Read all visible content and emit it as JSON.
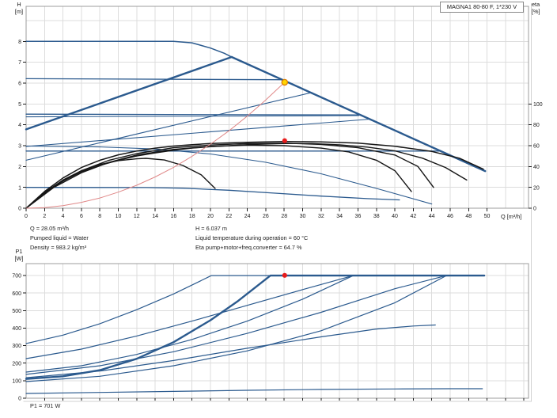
{
  "title_box": "MAGNA1 80-80 F, 1*230 V",
  "axes": {
    "top": {
      "y_label_1": "H",
      "y_label_2": "[m]",
      "y_ticks": [
        0,
        1,
        2,
        3,
        4,
        5,
        6,
        7,
        8
      ],
      "x_ticks": [
        0,
        2,
        4,
        6,
        8,
        10,
        12,
        14,
        16,
        18,
        20,
        22,
        24,
        26,
        28,
        30,
        32,
        34,
        36,
        38,
        40,
        42,
        44,
        46,
        48,
        50
      ],
      "x_axis_label": "Q [m³/h]",
      "eta_label_1": "eta",
      "eta_label_2": "[%]",
      "eta_ticks": [
        0,
        20,
        40,
        60,
        80,
        100
      ]
    },
    "bottom": {
      "y_label_1": "P1",
      "y_label_2": "[W]",
      "y_ticks": [
        0,
        100,
        200,
        300,
        400,
        500,
        600,
        700
      ]
    }
  },
  "annotations": {
    "left": [
      "Q = 28.05 m³/h",
      "Pumped liquid = Water",
      "Density = 983.2 kg/m³"
    ],
    "right": [
      "H = 6.037 m",
      "Liquid temperature during operation = 60 °C",
      "Eta pump+motor+freq.converter = 64.7 %"
    ],
    "power_readout": "P1 = 701 W"
  },
  "colors": {
    "curve_blue": "#2b5a8e",
    "curve_black": "#161616",
    "system_red": "#e08888",
    "dot_red": "#e81c1c",
    "dot_yellow": "#ffd400",
    "dot_yellow_ring": "#dd7f00",
    "grid": "#dcdcdc",
    "border": "#9d9d9d",
    "outer": "#d2d2d2",
    "text": "#1a1a1a"
  },
  "duty_point": {
    "flow_m3h": 28.05,
    "head_m": 6.037,
    "eta_pct": 64.7,
    "power_w": 701
  },
  "chart_data": [
    {
      "id": "head-flow",
      "type": "line",
      "title": "MAGNA1 80-80 F, 1*230 V",
      "xlabel": "Q [m³/h]",
      "ylabel": "H [m]",
      "y2label": "eta [%]",
      "xlim": [
        0,
        54.5
      ],
      "ylim": [
        0,
        9.68
      ],
      "y2lim_pct": [
        0,
        193.6
      ],
      "grid": "on",
      "series": [
        {
          "name": "max-curve-flat",
          "color": "curve_blue",
          "w": 1.5,
          "axis": "h",
          "pts": [
            [
              0,
              8
            ],
            [
              16,
              8
            ],
            [
              18,
              7.93
            ],
            [
              20,
              7.68
            ],
            [
              21.5,
              7.43
            ],
            [
              22.3,
              7.25
            ]
          ]
        },
        {
          "name": "max-curve-descent",
          "color": "curve_blue",
          "w": 2.4,
          "axis": "h",
          "pts": [
            [
              22.3,
              7.25
            ],
            [
              49.8,
              1.78
            ]
          ]
        },
        {
          "name": "max-curve-rise",
          "color": "curve_blue",
          "w": 2.4,
          "axis": "h",
          "pts": [
            [
              0,
              3.78
            ],
            [
              22.3,
              7.25
            ]
          ]
        },
        {
          "name": "const-pressure-6.2",
          "color": "curve_blue",
          "w": 1.3,
          "axis": "h",
          "pts": [
            [
              0,
              6.21
            ],
            [
              27.6,
              6.16
            ]
          ]
        },
        {
          "name": "const-pressure-4.5",
          "color": "curve_blue",
          "w": 1.3,
          "axis": "h",
          "pts": [
            [
              0,
              4.51
            ],
            [
              36.1,
              4.47
            ]
          ]
        },
        {
          "name": "prop-pressure-4.4",
          "color": "curve_blue",
          "w": 1.1,
          "axis": "h",
          "pts": [
            [
              0,
              4.38
            ],
            [
              36.1,
              4.44
            ]
          ]
        },
        {
          "name": "prop-pressure-3.0",
          "color": "curve_blue",
          "w": 1.1,
          "axis": "h",
          "pts": [
            [
              0,
              2.96
            ],
            [
              37.3,
              4.27
            ]
          ]
        },
        {
          "name": "const-pressure-2.75",
          "color": "curve_blue",
          "w": 1.3,
          "axis": "h",
          "pts": [
            [
              0,
              2.74
            ],
            [
              44.9,
              2.74
            ]
          ]
        },
        {
          "name": "prop-pressure-2.3",
          "color": "curve_blue",
          "w": 1.1,
          "axis": "h",
          "pts": [
            [
              0,
              2.3
            ],
            [
              31,
              5.55
            ]
          ]
        },
        {
          "name": "speed-curve-low",
          "color": "curve_blue",
          "w": 1.1,
          "axis": "h",
          "pts": [
            [
              0,
              2.98
            ],
            [
              8,
              2.94
            ],
            [
              14,
              2.84
            ],
            [
              20,
              2.6
            ],
            [
              26,
              2.2
            ],
            [
              32,
              1.65
            ],
            [
              38,
              0.95
            ],
            [
              44,
              0.2
            ]
          ]
        },
        {
          "name": "min-curve",
          "color": "curve_blue",
          "w": 1.3,
          "axis": "h",
          "pts": [
            [
              0,
              1.0
            ],
            [
              13,
              0.99
            ],
            [
              17,
              0.96
            ],
            [
              22,
              0.86
            ],
            [
              27,
              0.72
            ],
            [
              32,
              0.58
            ],
            [
              37,
              0.46
            ],
            [
              40.5,
              0.4
            ]
          ]
        },
        {
          "name": "eta-curve-1",
          "color": "curve_black",
          "w": 1.5,
          "axis": "h",
          "pts": [
            [
              0,
              0
            ],
            [
              2,
              0.8
            ],
            [
              4,
              1.45
            ],
            [
              6,
              1.95
            ],
            [
              8,
              2.3
            ],
            [
              10,
              2.56
            ],
            [
              12,
              2.74
            ],
            [
              14,
              2.88
            ],
            [
              16,
              2.98
            ],
            [
              18,
              3.05
            ],
            [
              20,
              3.1
            ],
            [
              24,
              3.16
            ],
            [
              28,
              3.2
            ],
            [
              32,
              3.18
            ],
            [
              36,
              3.12
            ],
            [
              40,
              2.97
            ],
            [
              44,
              2.72
            ],
            [
              47,
              2.4
            ],
            [
              49.6,
              1.87
            ]
          ]
        },
        {
          "name": "eta-curve-2",
          "color": "curve_black",
          "w": 1.4,
          "axis": "h",
          "pts": [
            [
              0,
              0
            ],
            [
              2,
              0.75
            ],
            [
              4,
              1.35
            ],
            [
              6,
              1.8
            ],
            [
              8,
              2.1
            ],
            [
              10,
              2.28
            ],
            [
              12,
              2.37
            ],
            [
              13,
              2.39
            ],
            [
              15,
              2.31
            ],
            [
              17,
              2.05
            ],
            [
              19,
              1.6
            ],
            [
              20.5,
              0.95
            ]
          ]
        },
        {
          "name": "eta-curve-3",
          "color": "curve_black",
          "w": 1.4,
          "axis": "h",
          "pts": [
            [
              0,
              0
            ],
            [
              3,
              1.0
            ],
            [
              6,
              1.7
            ],
            [
              9,
              2.2
            ],
            [
              12,
              2.55
            ],
            [
              16,
              2.82
            ],
            [
              20,
              2.96
            ],
            [
              24,
              3.02
            ],
            [
              28,
              3.0
            ],
            [
              32,
              2.88
            ],
            [
              35,
              2.7
            ],
            [
              38,
              2.3
            ],
            [
              40,
              1.8
            ],
            [
              41.8,
              0.8
            ]
          ]
        },
        {
          "name": "eta-curve-4",
          "color": "curve_black",
          "w": 1.4,
          "axis": "h",
          "pts": [
            [
              0,
              0
            ],
            [
              3,
              1.05
            ],
            [
              6,
              1.8
            ],
            [
              9,
              2.3
            ],
            [
              12,
              2.62
            ],
            [
              16,
              2.9
            ],
            [
              20,
              3.03
            ],
            [
              24,
              3.1
            ],
            [
              28,
              3.12
            ],
            [
              32,
              3.06
            ],
            [
              36,
              2.9
            ],
            [
              40,
              2.55
            ],
            [
              42.5,
              2.0
            ],
            [
              44.2,
              1.0
            ]
          ]
        },
        {
          "name": "eta-curve-5",
          "color": "curve_black",
          "w": 1.4,
          "axis": "h",
          "pts": [
            [
              0,
              0
            ],
            [
              2,
              0.7
            ],
            [
              4,
              1.3
            ],
            [
              6,
              1.75
            ],
            [
              8,
              2.05
            ],
            [
              10,
              2.3
            ],
            [
              12,
              2.5
            ],
            [
              14,
              2.65
            ],
            [
              16,
              2.78
            ],
            [
              18,
              2.88
            ],
            [
              20,
              2.95
            ],
            [
              24,
              3.05
            ],
            [
              28,
              3.1
            ],
            [
              31,
              3.1
            ],
            [
              34,
              3.04
            ],
            [
              37,
              2.93
            ],
            [
              40,
              2.75
            ],
            [
              43,
              2.4
            ],
            [
              45.5,
              1.95
            ],
            [
              47.8,
              1.35
            ]
          ]
        },
        {
          "name": "system-curve",
          "color": "system_red",
          "w": 1,
          "axis": "h",
          "pts": [
            [
              0,
              0
            ],
            [
              2,
              0.03
            ],
            [
              4,
              0.12
            ],
            [
              6,
              0.28
            ],
            [
              8,
              0.49
            ],
            [
              10,
              0.77
            ],
            [
              12,
              1.1
            ],
            [
              14,
              1.5
            ],
            [
              16,
              1.96
            ],
            [
              18,
              2.49
            ],
            [
              20,
              3.07
            ],
            [
              22,
              3.71
            ],
            [
              24,
              4.42
            ],
            [
              26,
              5.19
            ],
            [
              28.05,
              6.04
            ]
          ]
        }
      ],
      "markers": [
        {
          "name": "duty-point-marker",
          "q": 28.05,
          "v": 6.037,
          "axis": "h",
          "style": "yellow"
        },
        {
          "name": "eta-point-marker",
          "q": 28.05,
          "v": 64.7,
          "axis": "eta",
          "style": "red"
        }
      ]
    },
    {
      "id": "power-flow",
      "type": "line",
      "xlabel": "Q [m³/h]",
      "ylabel": "P1 [W]",
      "xlim": [
        0,
        54.5
      ],
      "ylim": [
        0,
        768
      ],
      "grid": "on",
      "series": [
        {
          "name": "power-max-curve",
          "color": "curve_blue",
          "w": 2.4,
          "axis": "p",
          "pts": [
            [
              0,
              110
            ],
            [
              4,
              125
            ],
            [
              8,
              160
            ],
            [
              12,
              225
            ],
            [
              16,
              320
            ],
            [
              20,
              445
            ],
            [
              23,
              555
            ],
            [
              26.5,
              700
            ],
            [
              49.7,
              700
            ]
          ]
        },
        {
          "name": "power-curve-2",
          "color": "curve_blue",
          "w": 1.2,
          "axis": "p",
          "pts": [
            [
              0,
              312
            ],
            [
              4,
              360
            ],
            [
              8,
              425
            ],
            [
              12,
              505
            ],
            [
              16,
              595
            ],
            [
              20.1,
              700
            ],
            [
              26.5,
              700
            ]
          ]
        },
        {
          "name": "power-curve-3",
          "color": "curve_blue",
          "w": 1.2,
          "axis": "p",
          "pts": [
            [
              0,
              226
            ],
            [
              6,
              280
            ],
            [
              12,
              355
            ],
            [
              18,
              440
            ],
            [
              24,
              530
            ],
            [
              30,
              620
            ],
            [
              35.5,
              700
            ]
          ]
        },
        {
          "name": "power-curve-4",
          "color": "curve_blue",
          "w": 1.2,
          "axis": "p",
          "pts": [
            [
              0,
              149
            ],
            [
              6,
              185
            ],
            [
              12,
              250
            ],
            [
              18,
              335
            ],
            [
              24,
              440
            ],
            [
              30,
              565
            ],
            [
              35.5,
              700
            ]
          ]
        },
        {
          "name": "power-curve-5",
          "color": "curve_blue",
          "w": 1.2,
          "axis": "p",
          "pts": [
            [
              0,
              136
            ],
            [
              8,
              185
            ],
            [
              16,
              265
            ],
            [
              24,
              370
            ],
            [
              32,
              490
            ],
            [
              40,
              625
            ],
            [
              45.6,
              700
            ]
          ]
        },
        {
          "name": "power-curve-6",
          "color": "curve_blue",
          "w": 1.2,
          "axis": "p",
          "pts": [
            [
              0,
              117
            ],
            [
              8,
              155
            ],
            [
              16,
              215
            ],
            [
              24,
              285
            ],
            [
              32,
              350
            ],
            [
              38,
              395
            ],
            [
              42,
              412
            ],
            [
              44.4,
              418
            ]
          ]
        },
        {
          "name": "power-curve-7",
          "color": "curve_blue",
          "w": 1.2,
          "axis": "p",
          "pts": [
            [
              0,
              95
            ],
            [
              8,
              125
            ],
            [
              16,
              185
            ],
            [
              24,
              270
            ],
            [
              32,
              385
            ],
            [
              40,
              545
            ],
            [
              45.6,
              700
            ]
          ]
        },
        {
          "name": "power-min-curve",
          "color": "curve_blue",
          "w": 1.2,
          "axis": "p",
          "pts": [
            [
              0,
              27
            ],
            [
              8,
              33
            ],
            [
              16,
              39
            ],
            [
              24,
              45
            ],
            [
              32,
              50
            ],
            [
              40,
              53
            ],
            [
              46,
              54
            ],
            [
              49.5,
              54
            ]
          ]
        }
      ],
      "markers": [
        {
          "name": "power-point-marker",
          "q": 28.05,
          "v": 701,
          "axis": "p",
          "style": "red"
        }
      ]
    }
  ]
}
